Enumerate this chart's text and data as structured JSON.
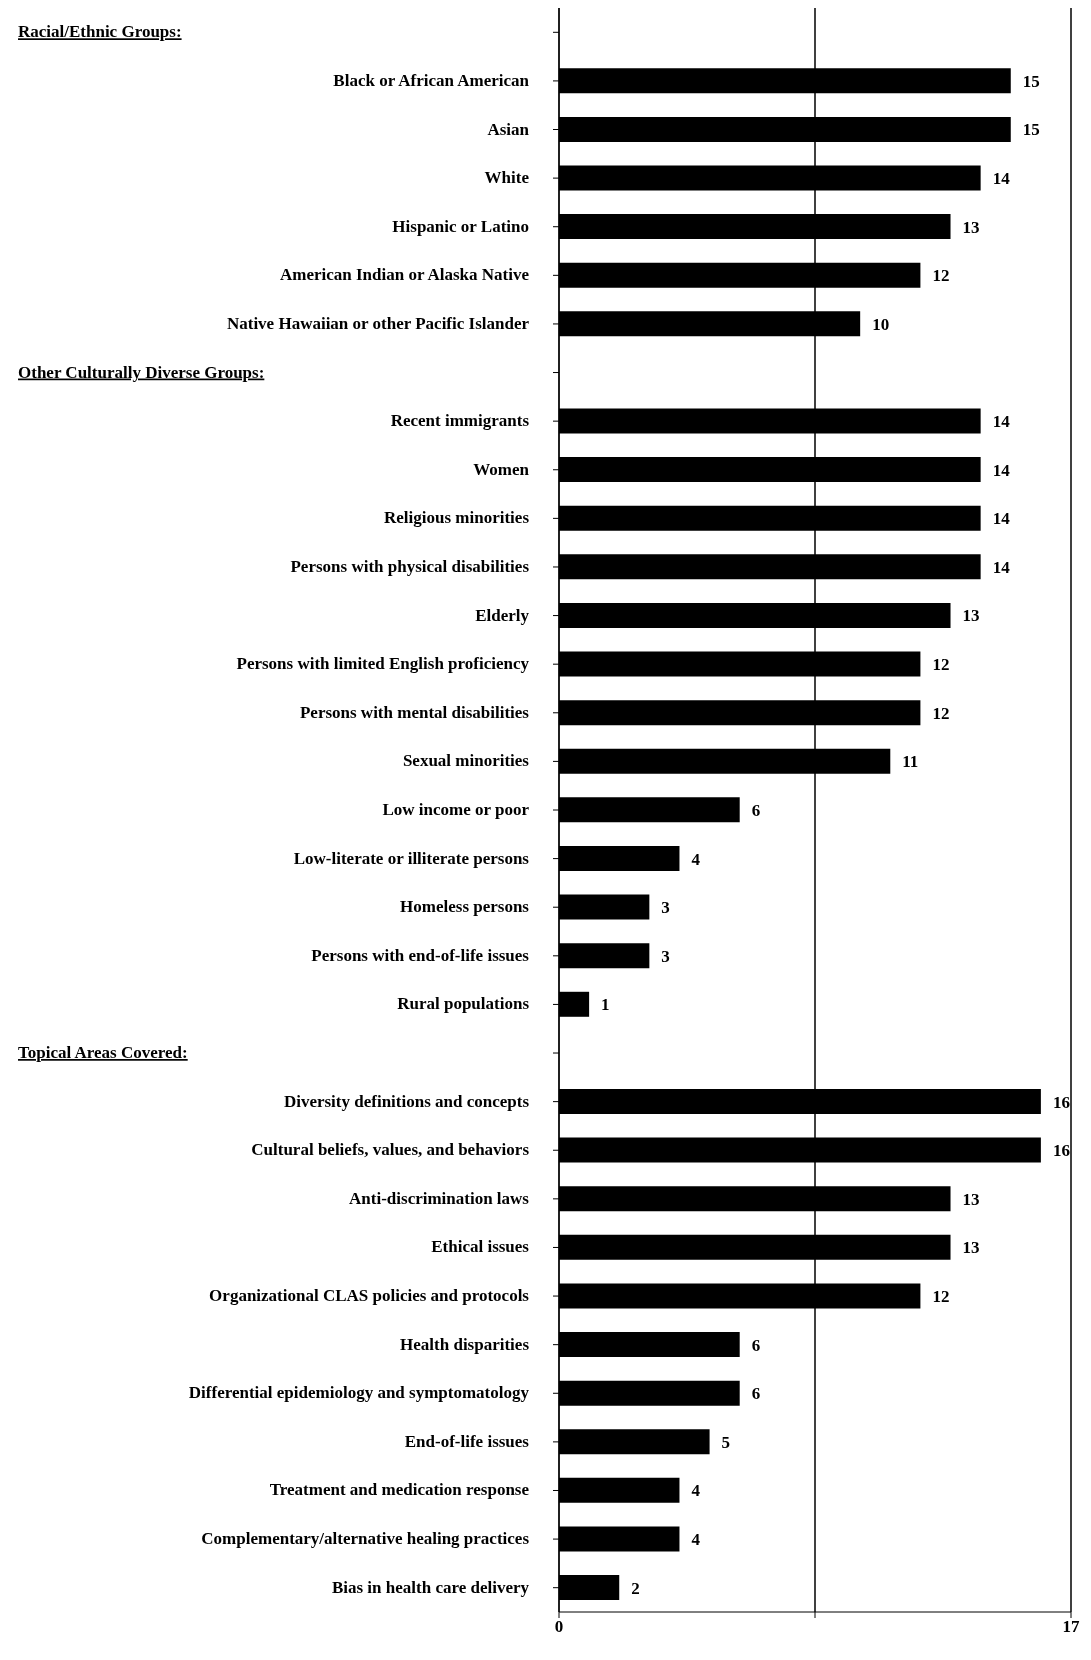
{
  "chart_data": {
    "type": "bar",
    "orientation": "horizontal",
    "annotations": [
      "Racial/Ethnic Groups:",
      "Other Culturally Diverse Groups:",
      "Topical Areas Covered:"
    ],
    "categories": [
      null,
      "Black or African American",
      "Asian",
      "White",
      "Hispanic or Latino",
      "American Indian or Alaska Native",
      "Native Hawaiian or other Pacific Islander",
      null,
      "Recent immigrants",
      "Women",
      "Religious minorities",
      "Persons with physical disabilities",
      "Elderly",
      "Persons with limited English proficiency",
      "Persons with mental disabilities",
      "Sexual minorities",
      "Low income or poor",
      "Low-literate or illiterate persons",
      "Homeless persons",
      "Persons with end-of-life issues",
      "Rural populations",
      null,
      "Diversity definitions and concepts",
      "Cultural beliefs, values, and behaviors",
      "Anti-discrimination laws",
      "Ethical issues",
      "Organizational CLAS policies and protocols",
      "Health disparities",
      "Differential epidemiology and symptomatology",
      "End-of-life issues",
      "Treatment and medication response",
      "Complementary/alternative healing practices",
      "Bias in health care delivery"
    ],
    "values": [
      null,
      15,
      15,
      14,
      13,
      12,
      10,
      null,
      14,
      14,
      14,
      14,
      13,
      12,
      12,
      11,
      6,
      4,
      3,
      3,
      1,
      null,
      16,
      16,
      13,
      13,
      12,
      6,
      6,
      5,
      4,
      4,
      2
    ],
    "color": "#000000",
    "data_labels": true,
    "xlim": [
      0,
      17
    ],
    "xticks": [
      0,
      {
        "value": 8.5,
        "label": null
      },
      17
    ],
    "grid": "x"
  }
}
